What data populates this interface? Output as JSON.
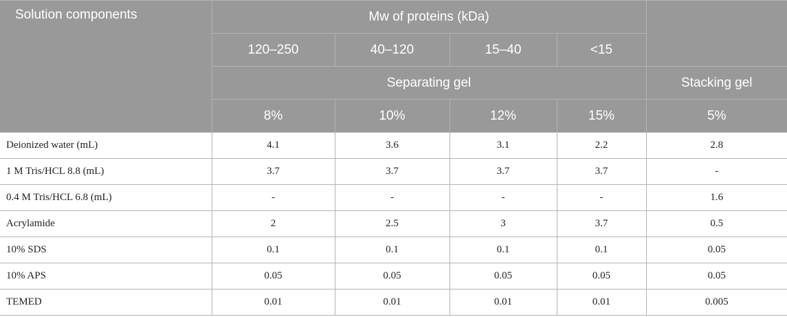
{
  "header": {
    "corner": "Solution components",
    "mw_title": "Mw of proteins (kDa)",
    "mw_ranges": [
      "120–250",
      "40–120",
      "15–40",
      "<15"
    ],
    "separating": "Separating gel",
    "stacking": "Stacking gel",
    "percents": [
      "8%",
      "10%",
      "12%",
      "15%",
      "5%"
    ]
  },
  "rows": [
    {
      "label": "Deionized water (mL)",
      "values": [
        "4.1",
        "3.6",
        "3.1",
        "2.2",
        "2.8"
      ]
    },
    {
      "label": "1 M Tris/HCL 8.8 (mL)",
      "values": [
        "3.7",
        "3.7",
        "3.7",
        "3.7",
        "-"
      ]
    },
    {
      "label": "0.4 M Tris/HCL 6.8 (mL)",
      "values": [
        "-",
        "-",
        "-",
        "-",
        "1.6"
      ]
    },
    {
      "label": "Acrylamide",
      "values": [
        "2",
        "2.5",
        "3",
        "3.7",
        "0.5"
      ]
    },
    {
      "label": "10% SDS",
      "values": [
        "0.1",
        "0.1",
        "0.1",
        "0.1",
        "0.05"
      ]
    },
    {
      "label": "10% APS",
      "values": [
        "0.05",
        "0.05",
        "0.05",
        "0.05",
        "0.05"
      ]
    },
    {
      "label": "TEMED",
      "values": [
        "0.01",
        "0.01",
        "0.01",
        "0.01",
        "0.005"
      ]
    }
  ]
}
